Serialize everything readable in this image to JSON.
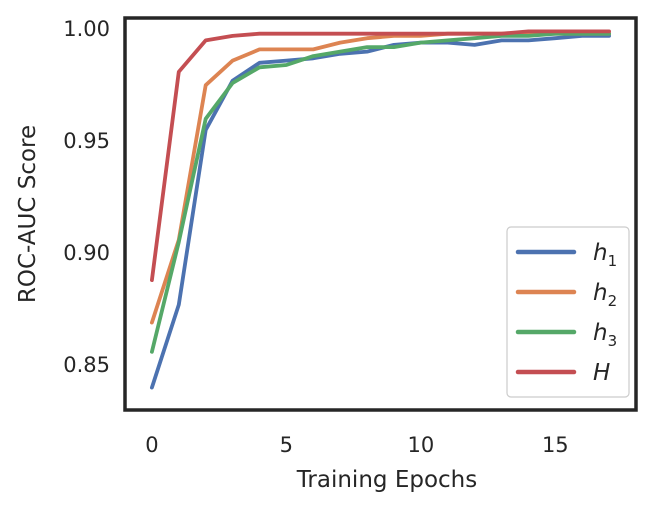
{
  "chart_data": {
    "type": "line",
    "title": "",
    "xlabel": "Training Epochs",
    "ylabel": "ROC-AUC Score",
    "xlim": [
      -1,
      18
    ],
    "ylim": [
      0.83,
      1.005
    ],
    "xticks": [
      0,
      5,
      10,
      15
    ],
    "xtick_labels": [
      "0",
      "5",
      "10",
      "15"
    ],
    "yticks": [
      0.85,
      0.9,
      0.95,
      1.0
    ],
    "ytick_labels": [
      "0.85",
      "0.90",
      "0.95",
      "1.00"
    ],
    "grid": false,
    "legend_position": "bottom-right",
    "x": [
      0,
      1,
      2,
      3,
      4,
      5,
      6,
      7,
      8,
      9,
      10,
      11,
      12,
      13,
      14,
      15,
      16,
      17
    ],
    "series": [
      {
        "name": "h1",
        "legend_base": "h",
        "legend_sub": "1",
        "color": "#4c72b0",
        "values": [
          0.84,
          0.877,
          0.955,
          0.977,
          0.985,
          0.986,
          0.987,
          0.989,
          0.99,
          0.993,
          0.994,
          0.994,
          0.993,
          0.995,
          0.995,
          0.996,
          0.997,
          0.997
        ]
      },
      {
        "name": "h2",
        "legend_base": "h",
        "legend_sub": "2",
        "color": "#dd8452",
        "values": [
          0.869,
          0.906,
          0.975,
          0.986,
          0.991,
          0.991,
          0.991,
          0.994,
          0.996,
          0.997,
          0.997,
          0.998,
          0.998,
          0.998,
          0.998,
          0.998,
          0.998,
          0.998
        ]
      },
      {
        "name": "h3",
        "legend_base": "h",
        "legend_sub": "3",
        "color": "#55a868",
        "values": [
          0.856,
          0.905,
          0.96,
          0.976,
          0.983,
          0.984,
          0.988,
          0.99,
          0.992,
          0.992,
          0.994,
          0.995,
          0.996,
          0.997,
          0.997,
          0.998,
          0.998,
          0.998
        ]
      },
      {
        "name": "H",
        "legend_base": "H",
        "legend_sub": "",
        "color": "#c44e52",
        "values": [
          0.888,
          0.981,
          0.995,
          0.997,
          0.998,
          0.998,
          0.998,
          0.998,
          0.998,
          0.998,
          0.998,
          0.998,
          0.998,
          0.998,
          0.999,
          0.999,
          0.999,
          0.999
        ]
      }
    ]
  }
}
